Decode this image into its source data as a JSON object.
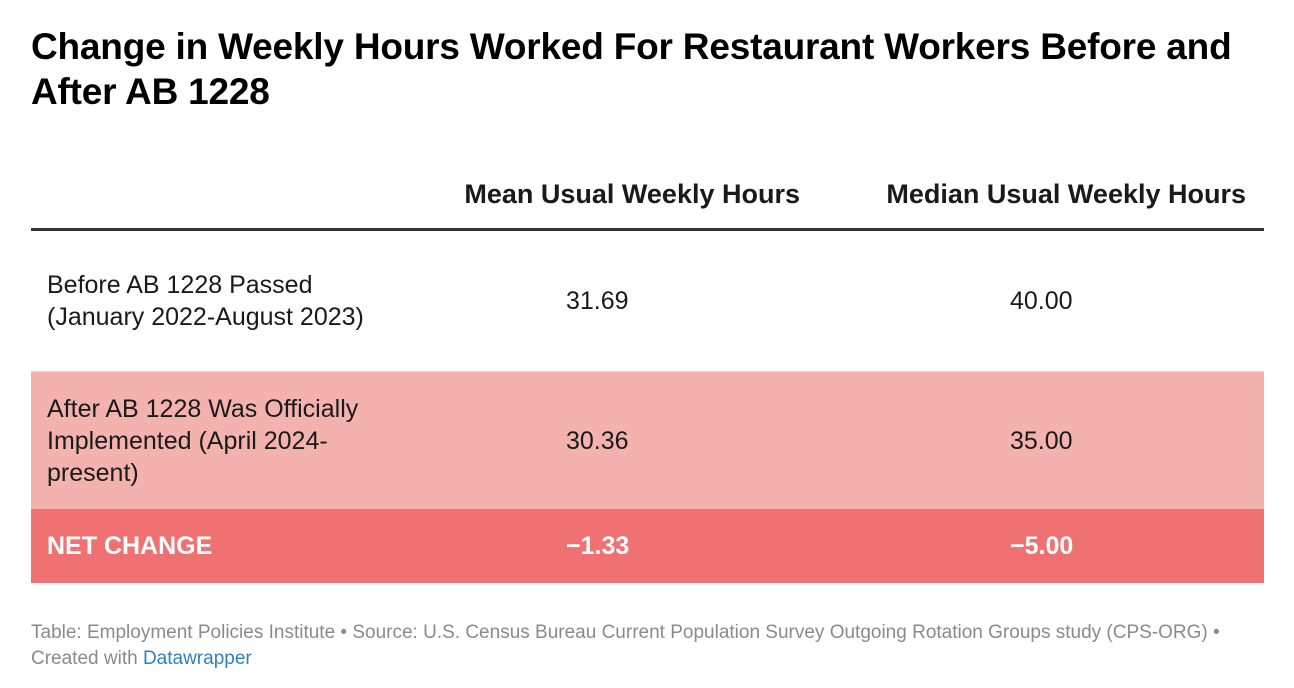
{
  "title": "Change in Weekly Hours Worked For Restaurant Workers Before and After AB 1228",
  "chart_data": {
    "type": "table",
    "title": "Change in Weekly Hours Worked For Restaurant Workers Before and After AB 1228",
    "columns": [
      "",
      "Mean Usual Weekly Hours",
      "Median Usual Weekly Hours"
    ],
    "rows": [
      {
        "label": "Before AB 1228 Passed (January 2022-August 2023)",
        "mean": "31.69",
        "median": "40.00"
      },
      {
        "label": "After AB 1228 Was Officially Implemented (April 2024-present)",
        "mean": "30.36",
        "median": "35.00"
      },
      {
        "label": "NET CHANGE",
        "mean": "−1.33",
        "median": "−5.00"
      }
    ]
  },
  "footer": {
    "text": "Table: Employment Policies Institute • Source: U.S. Census Bureau Current Population Survey Outgoing Rotation Groups study (CPS-ORG) • Created with ",
    "link": "Datawrapper"
  },
  "colors": {
    "after_row": "#f4b2ae",
    "net_row": "#ef7171",
    "link": "#2f80c5"
  }
}
